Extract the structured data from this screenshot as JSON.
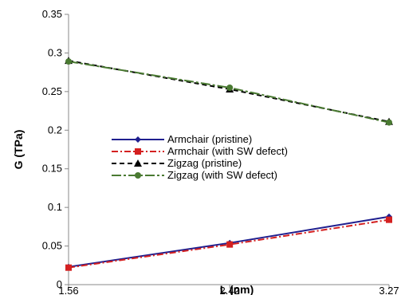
{
  "chart_data": {
    "type": "line",
    "xlabel": "L (nm)",
    "ylabel": "G (TPa)",
    "x": [
      1.56,
      2.42,
      3.27
    ],
    "x_tick_labels": [
      "1.56",
      "2.42",
      "3.27"
    ],
    "xlim": [
      1.56,
      3.27
    ],
    "ylim": [
      0,
      0.35
    ],
    "y_ticks": [
      "0",
      "0.05",
      "0.1",
      "0.15",
      "0.2",
      "0.25",
      "0.3",
      "0.35"
    ],
    "grid": false,
    "legend_position": "center-left",
    "series": [
      {
        "name": "Armchair (pristine)",
        "values": [
          0.023,
          0.054,
          0.088
        ],
        "color": "#1f1f8f",
        "dash": "solid",
        "marker": "diamond"
      },
      {
        "name": "Armchair (with SW defect)",
        "values": [
          0.022,
          0.052,
          0.084
        ],
        "color": "#d42020",
        "dash": "dashdot",
        "marker": "square"
      },
      {
        "name": "Zigzag (pristine)",
        "values": [
          0.29,
          0.253,
          0.211
        ],
        "color": "#000000",
        "dash": "dash",
        "marker": "triangle"
      },
      {
        "name": "Zigzag (with SW defect)",
        "values": [
          0.289,
          0.255,
          0.21
        ],
        "color": "#4a7a32",
        "dash": "longdash",
        "marker": "circle"
      }
    ]
  }
}
